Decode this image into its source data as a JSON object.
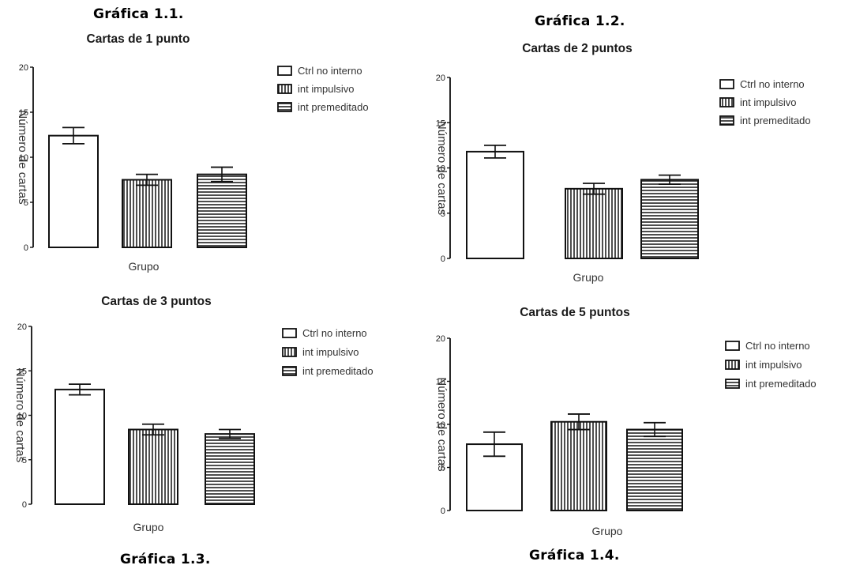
{
  "captions": {
    "c1": "Gráfica 1.1.",
    "c2": "Gráfica 1.2.",
    "c3": "Gráfica 1.3.",
    "c4": "Gráfica 1.4."
  },
  "legend": [
    "Ctrl no interno",
    "int impulsivo",
    "int premeditado"
  ],
  "colors": {
    "bar_fill": "#ffffff",
    "bar_stroke": "#111111",
    "hatch": "#222222",
    "axis": "#111111"
  },
  "chart_data": [
    {
      "id": "c1",
      "type": "bar",
      "title": "Cartas de 1 punto",
      "xlabel": "Grupo",
      "ylabel": "Número de cartas",
      "ylim": [
        0,
        20
      ],
      "yticks": [
        0,
        5,
        10,
        15,
        20
      ],
      "categories": [
        "Ctrl no interno",
        "int impulsivo",
        "int premeditado"
      ],
      "values": [
        12.4,
        7.5,
        8.1
      ],
      "errors": [
        0.9,
        0.6,
        0.8
      ],
      "legend_position": "top-right"
    },
    {
      "id": "c2",
      "type": "bar",
      "title": "Cartas de 2 puntos",
      "xlabel": "Grupo",
      "ylabel": "Número de cartas",
      "ylim": [
        0,
        20
      ],
      "yticks": [
        0,
        5,
        10,
        15,
        20
      ],
      "categories": [
        "Ctrl no interno",
        "int impulsivo",
        "int premeditado"
      ],
      "values": [
        11.8,
        7.7,
        8.7
      ],
      "errors": [
        0.7,
        0.6,
        0.5
      ],
      "legend_position": "top-right"
    },
    {
      "id": "c3",
      "type": "bar",
      "title": "Cartas de 3 puntos",
      "xlabel": "Grupo",
      "ylabel": "Número de cartas",
      "ylim": [
        0,
        20
      ],
      "yticks": [
        0,
        5,
        10,
        15,
        20
      ],
      "categories": [
        "Ctrl no interno",
        "int impulsivo",
        "int premeditado"
      ],
      "values": [
        12.9,
        8.4,
        7.9
      ],
      "errors": [
        0.6,
        0.6,
        0.5
      ],
      "legend_position": "top-right"
    },
    {
      "id": "c4",
      "type": "bar",
      "title": "Cartas de 5 puntos",
      "xlabel": "Grupo",
      "ylabel": "Número de cartas",
      "ylim": [
        0,
        20
      ],
      "yticks": [
        0,
        5,
        10,
        15,
        20
      ],
      "categories": [
        "Ctrl no interno",
        "int impulsivo",
        "int premeditado"
      ],
      "values": [
        7.7,
        10.3,
        9.4
      ],
      "errors": [
        1.4,
        0.9,
        0.8
      ],
      "legend_position": "top-right"
    }
  ]
}
